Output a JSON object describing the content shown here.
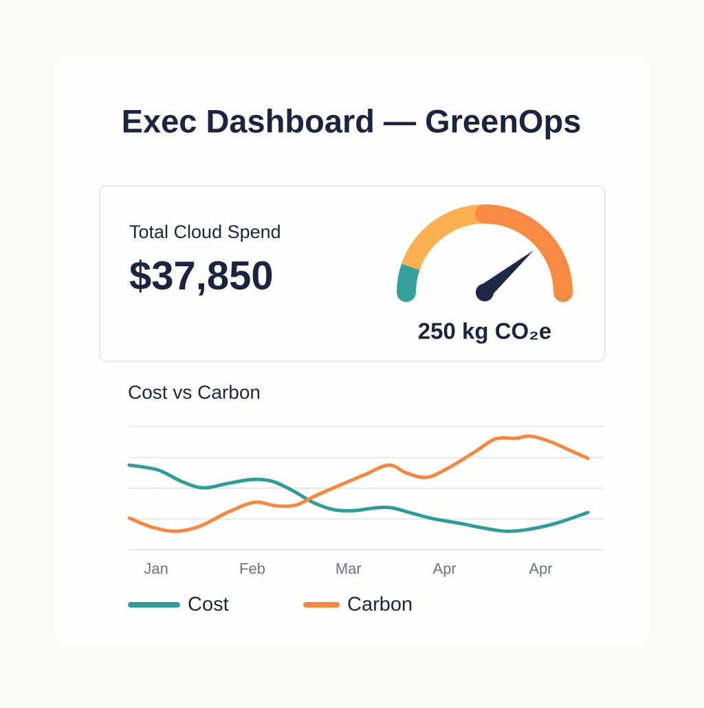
{
  "header": {
    "title": "Exec Dashboard — GreenOps"
  },
  "kpi": {
    "label": "Total Cloud Spend",
    "value": "$37,850"
  },
  "gauge": {
    "label": "250 kg CO₂e"
  },
  "chart_data": {
    "type": "line",
    "title": "Cost vs Carbon",
    "xlim": [
      -0.28,
      4.49
    ],
    "xticks": [
      {
        "value": 0,
        "label": "Jan"
      },
      {
        "value": 1,
        "label": "Feb"
      },
      {
        "value": 2,
        "label": "Mar"
      },
      {
        "value": 3,
        "label": "Apr"
      },
      {
        "value": 4,
        "label": "Apr"
      }
    ],
    "ylim": [
      0,
      4
    ],
    "yticks": [
      0,
      1,
      2,
      3,
      4
    ],
    "grid": true,
    "series": [
      {
        "name": "Cost",
        "color": "#2f9c97",
        "x": [
          -0.28,
          0.02,
          0.27,
          0.49,
          0.74,
          0.99,
          1.2,
          1.42,
          1.63,
          1.85,
          2.06,
          2.28,
          2.45,
          2.67,
          2.88,
          3.17,
          3.38,
          3.64,
          3.89,
          4.17,
          4.49
        ],
        "values": [
          2.75,
          2.59,
          2.21,
          2.01,
          2.15,
          2.28,
          2.23,
          1.92,
          1.54,
          1.3,
          1.27,
          1.36,
          1.36,
          1.18,
          1.01,
          0.85,
          0.72,
          0.6,
          0.67,
          0.87,
          1.21
        ]
      },
      {
        "name": "Carbon",
        "color": "#f7873f",
        "x": [
          -0.28,
          -0.05,
          0.2,
          0.45,
          0.74,
          1.02,
          1.24,
          1.45,
          1.67,
          1.95,
          2.17,
          2.42,
          2.6,
          2.81,
          3.03,
          3.31,
          3.53,
          3.74,
          3.89,
          4.1,
          4.31,
          4.49
        ],
        "values": [
          1.03,
          0.74,
          0.6,
          0.76,
          1.21,
          1.54,
          1.43,
          1.45,
          1.77,
          2.15,
          2.44,
          2.75,
          2.5,
          2.35,
          2.64,
          3.17,
          3.6,
          3.62,
          3.69,
          3.51,
          3.22,
          2.97
        ]
      }
    ]
  }
}
